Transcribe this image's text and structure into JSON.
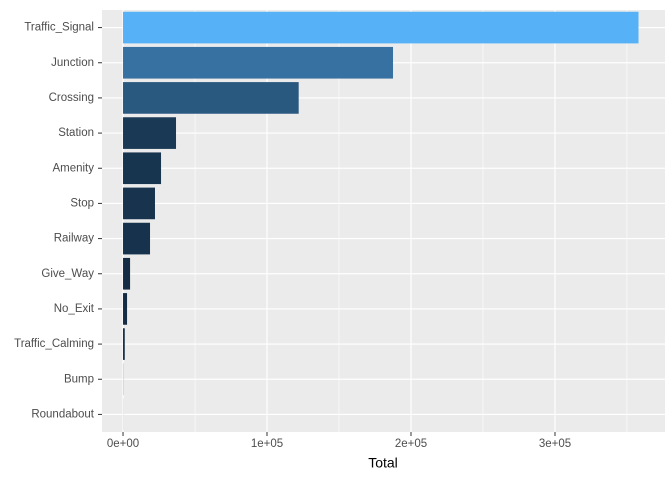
{
  "chart_data": {
    "type": "bar",
    "orientation": "horizontal",
    "categories": [
      "Traffic_Signal",
      "Junction",
      "Crossing",
      "Station",
      "Amenity",
      "Stop",
      "Railway",
      "Give_Way",
      "No_Exit",
      "Traffic_Calming",
      "Bump",
      "Roundabout"
    ],
    "values": [
      358000,
      187500,
      122000,
      36800,
      26400,
      22200,
      18750,
      4900,
      2800,
      1200,
      100,
      50
    ],
    "color_low": "#132B43",
    "color_high": "#56B1F7",
    "x_label": "Total",
    "xlim": [
      -14600,
      376400
    ],
    "xticks": [
      {
        "value": 0,
        "label": "0e+00"
      },
      {
        "value": 100000,
        "label": "1e+05"
      },
      {
        "value": 200000,
        "label": "2e+05"
      },
      {
        "value": 300000,
        "label": "3e+05"
      }
    ],
    "minor_xticks": [
      50000,
      150000,
      250000,
      350000
    ],
    "grid": true
  }
}
